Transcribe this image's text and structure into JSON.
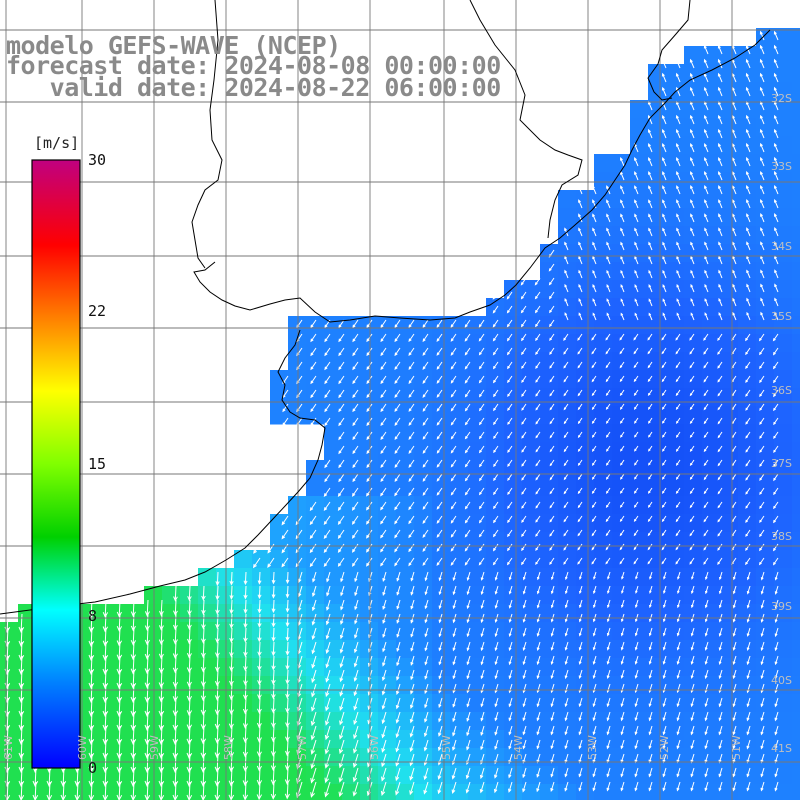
{
  "title": {
    "model": "modelo GEFS-WAVE (NCEP)",
    "forecast": "forecast date: 2024-08-08 00:00:00",
    "valid": "   valid date: 2024-08-22 06:00:00"
  },
  "colorbar": {
    "unit": "[m/s]",
    "ticks": [
      "30",
      "22",
      "15",
      "8",
      "0"
    ],
    "colors": [
      "#0000ff",
      "#00a0ff",
      "#00ffff",
      "#00e000",
      "#ffff00",
      "#ff8000",
      "#ff0000",
      "#c00080"
    ]
  },
  "map": {
    "lat_labels": [
      "32S",
      "33S",
      "34S",
      "35S",
      "36S",
      "37S",
      "38S",
      "39S",
      "40S",
      "41S"
    ],
    "lon_labels": [
      "61W",
      "60W",
      "59W",
      "58W",
      "57W",
      "56W",
      "55W",
      "54W",
      "53W",
      "52W",
      "51W"
    ],
    "field_colors": {
      "deep_blue": "#0a3cf0",
      "mid_blue": "#1e64ff",
      "light_blue": "#1ea0ff",
      "cyan": "#20e0f0",
      "green": "#20e050",
      "land": "#ffffff"
    }
  }
}
